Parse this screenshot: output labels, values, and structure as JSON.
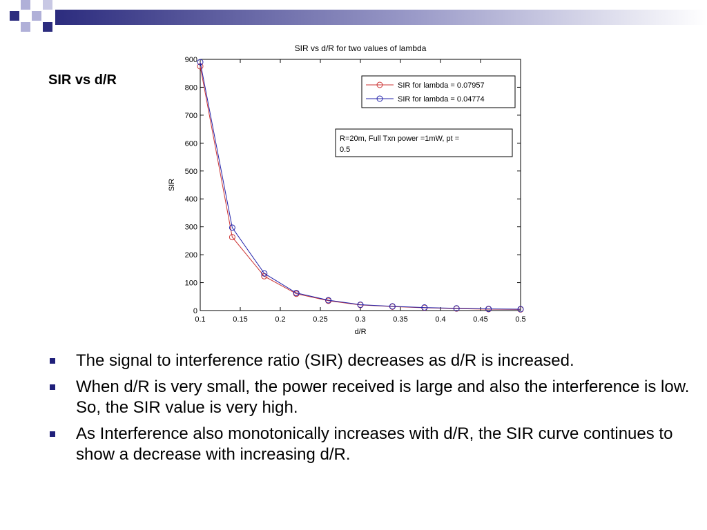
{
  "theme": {
    "accent_dark": "#2c2c7e",
    "accent_light": "#b0b0d8",
    "bullet_color": "#1f1f7a"
  },
  "slide": {
    "heading": "SIR vs d/R",
    "bullets": [
      "The signal to interference ratio (SIR) decreases as d/R is increased.",
      "When d/R is very small, the power received is large and also the interference is low. So, the SIR value is very high.",
      "As Interference also monotonically increases with d/R, the SIR curve continues to show a decrease with increasing d/R."
    ]
  },
  "chart_data": {
    "type": "line",
    "title": "SIR vs d/R for two values of lambda",
    "xlabel": "d/R",
    "ylabel": "SIR",
    "xlim": [
      0.1,
      0.5
    ],
    "ylim": [
      0,
      900
    ],
    "xticks": [
      "0.1",
      "0.15",
      "0.2",
      "0.25",
      "0.3",
      "0.35",
      "0.4",
      "0.45",
      "0.5"
    ],
    "yticks": [
      "0",
      "100",
      "200",
      "300",
      "400",
      "500",
      "600",
      "700",
      "800",
      "900"
    ],
    "grid": false,
    "legend_position": "top-right",
    "annotation": [
      "R=20m, Full Txn power =1mW, pt =",
      "0.5"
    ],
    "x": [
      0.1,
      0.14,
      0.18,
      0.22,
      0.26,
      0.3,
      0.34,
      0.38,
      0.42,
      0.46,
      0.5
    ],
    "series": [
      {
        "name": "SIR for lambda = 0.07957",
        "color": "#cc3333",
        "marker": "circle",
        "values": [
          875,
          263,
          123,
          60,
          35,
          20,
          14,
          10,
          7,
          5,
          4
        ]
      },
      {
        "name": "SIR for lambda = 0.04774",
        "color": "#2222aa",
        "marker": "circle",
        "values": [
          890,
          297,
          133,
          63,
          37,
          21,
          15,
          11,
          8,
          6,
          5
        ]
      }
    ]
  }
}
